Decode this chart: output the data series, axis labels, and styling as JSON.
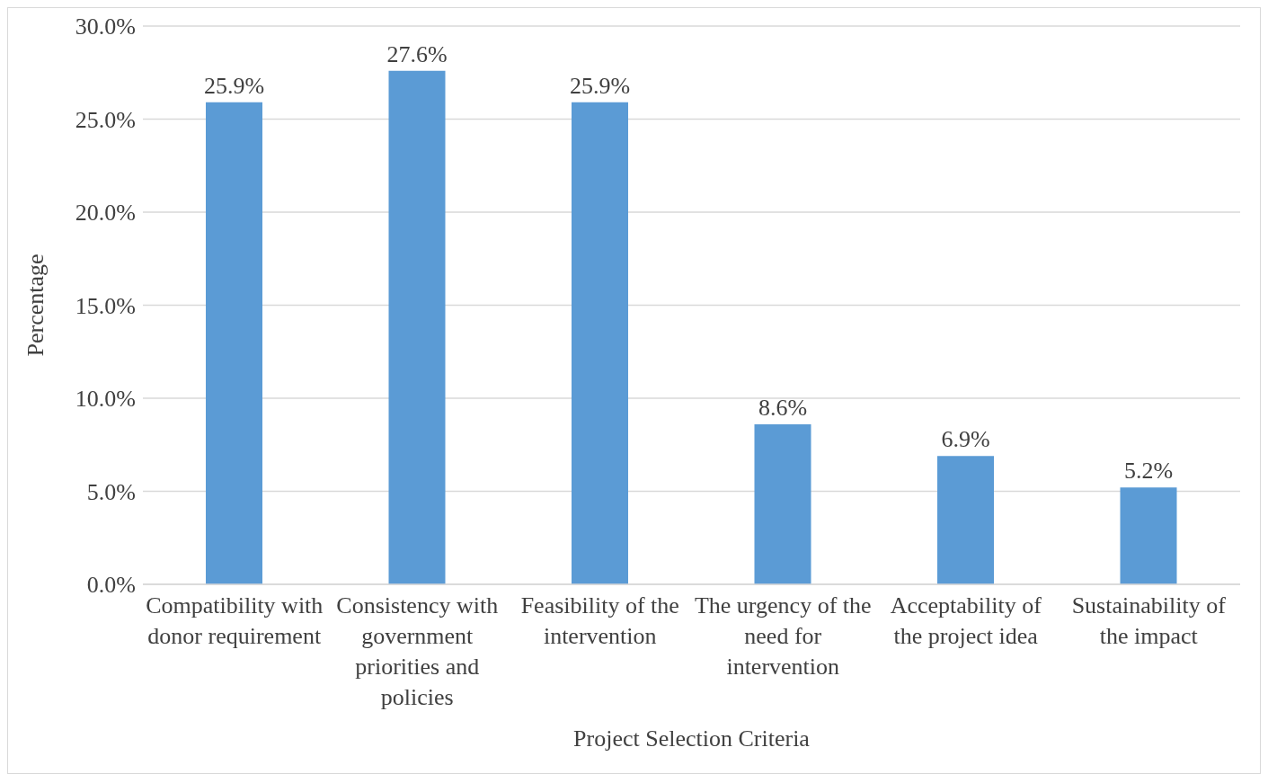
{
  "chart_data": {
    "type": "bar",
    "xlabel": "Project Selection Criteria",
    "ylabel": "Percentage",
    "categories": [
      "Compatibility with donor requirement",
      "Consistency with government priorities and policies",
      "Feasibility of the intervention",
      "The urgency of the need for intervention",
      "Acceptability of the project idea",
      "Sustainability of the impact"
    ],
    "values": [
      25.9,
      27.6,
      25.9,
      8.6,
      6.9,
      5.2
    ],
    "value_labels": [
      "25.9%",
      "27.6%",
      "25.9%",
      "8.6%",
      "6.9%",
      "5.2%"
    ],
    "color": "#5b9bd5",
    "ylim": [
      0,
      30
    ],
    "yticks": [
      {
        "value": 0,
        "label": "0.0%"
      },
      {
        "value": 5,
        "label": "5.0%"
      },
      {
        "value": 10,
        "label": "10.0%"
      },
      {
        "value": 15,
        "label": "15.0%"
      },
      {
        "value": 20,
        "label": "20.0%"
      },
      {
        "value": 25,
        "label": "25.0%"
      },
      {
        "value": 30,
        "label": "30.0%"
      }
    ],
    "grid": "y",
    "legend": false
  }
}
